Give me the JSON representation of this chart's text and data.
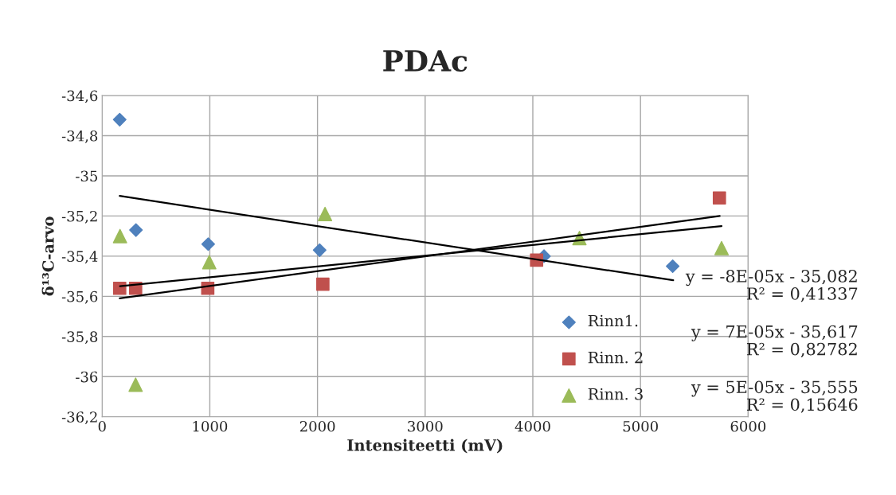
{
  "chart_data": {
    "type": "scatter",
    "title": "PDAc",
    "xlabel": "Intensiteetti (mV)",
    "ylabel": "δ¹³C-arvo",
    "series": [
      {
        "name": "Rinn1.",
        "color": "#4f81bd",
        "marker": "diamond",
        "x": [
          163,
          314,
          985,
          2020,
          4104,
          5299
        ],
        "values": [
          -34.72,
          -35.27,
          -35.34,
          -35.37,
          -35.4,
          -35.45
        ]
      },
      {
        "name": "Rinn. 2",
        "color": "#c0504d",
        "marker": "square",
        "x": [
          163,
          311,
          981,
          2050,
          4035,
          5733
        ],
        "values": [
          -35.56,
          -35.56,
          -35.56,
          -35.54,
          -35.42,
          -35.11
        ]
      },
      {
        "name": "Rinn. 3",
        "color": "#9bbb59",
        "marker": "triangle",
        "x": [
          166,
          311,
          995,
          2070,
          4433,
          5753
        ],
        "values": [
          -35.3,
          -36.04,
          -35.43,
          -35.19,
          -35.31,
          -35.36
        ]
      },
      {
        "type": "line",
        "color": "#000000",
        "marker": "none",
        "x": [
          163,
          5304
        ],
        "values": [
          -35.1,
          -35.52
        ]
      },
      {
        "type": "line",
        "color": "#000000",
        "marker": "none",
        "x": [
          163,
          5736
        ],
        "values": [
          -35.61,
          -35.2
        ]
      },
      {
        "type": "line",
        "color": "#000000",
        "marker": "none",
        "x": [
          166,
          5753
        ],
        "values": [
          -35.55,
          -35.25
        ]
      }
    ],
    "xlim": [
      0,
      6000
    ],
    "xticks": [
      0,
      1000,
      2000,
      3000,
      4000,
      5000,
      6000
    ],
    "ylim": [
      -36.2,
      -34.6
    ],
    "yticks": [
      {
        "value": -36.2,
        "label": "-36,2"
      },
      {
        "value": -36,
        "label": "-36"
      },
      {
        "value": -35.8,
        "label": "-35,8"
      },
      {
        "value": -35.6,
        "label": "-35,6"
      },
      {
        "value": -35.4,
        "label": "-35,4"
      },
      {
        "value": -35.2,
        "label": "-35,2"
      },
      {
        "value": -35,
        "label": "-35"
      },
      {
        "value": -34.8,
        "label": "-34,8"
      },
      {
        "value": -34.6,
        "label": "-34,6"
      }
    ],
    "grid": true,
    "legend": "bottom right",
    "annotations": [
      "y = -8E-05x - 35,082\nR² = 0,41337",
      "y = 7E-05x - 35,617\nR² = 0,82782",
      "y = 5E-05x - 35,555\nR² = 0,15646"
    ]
  }
}
